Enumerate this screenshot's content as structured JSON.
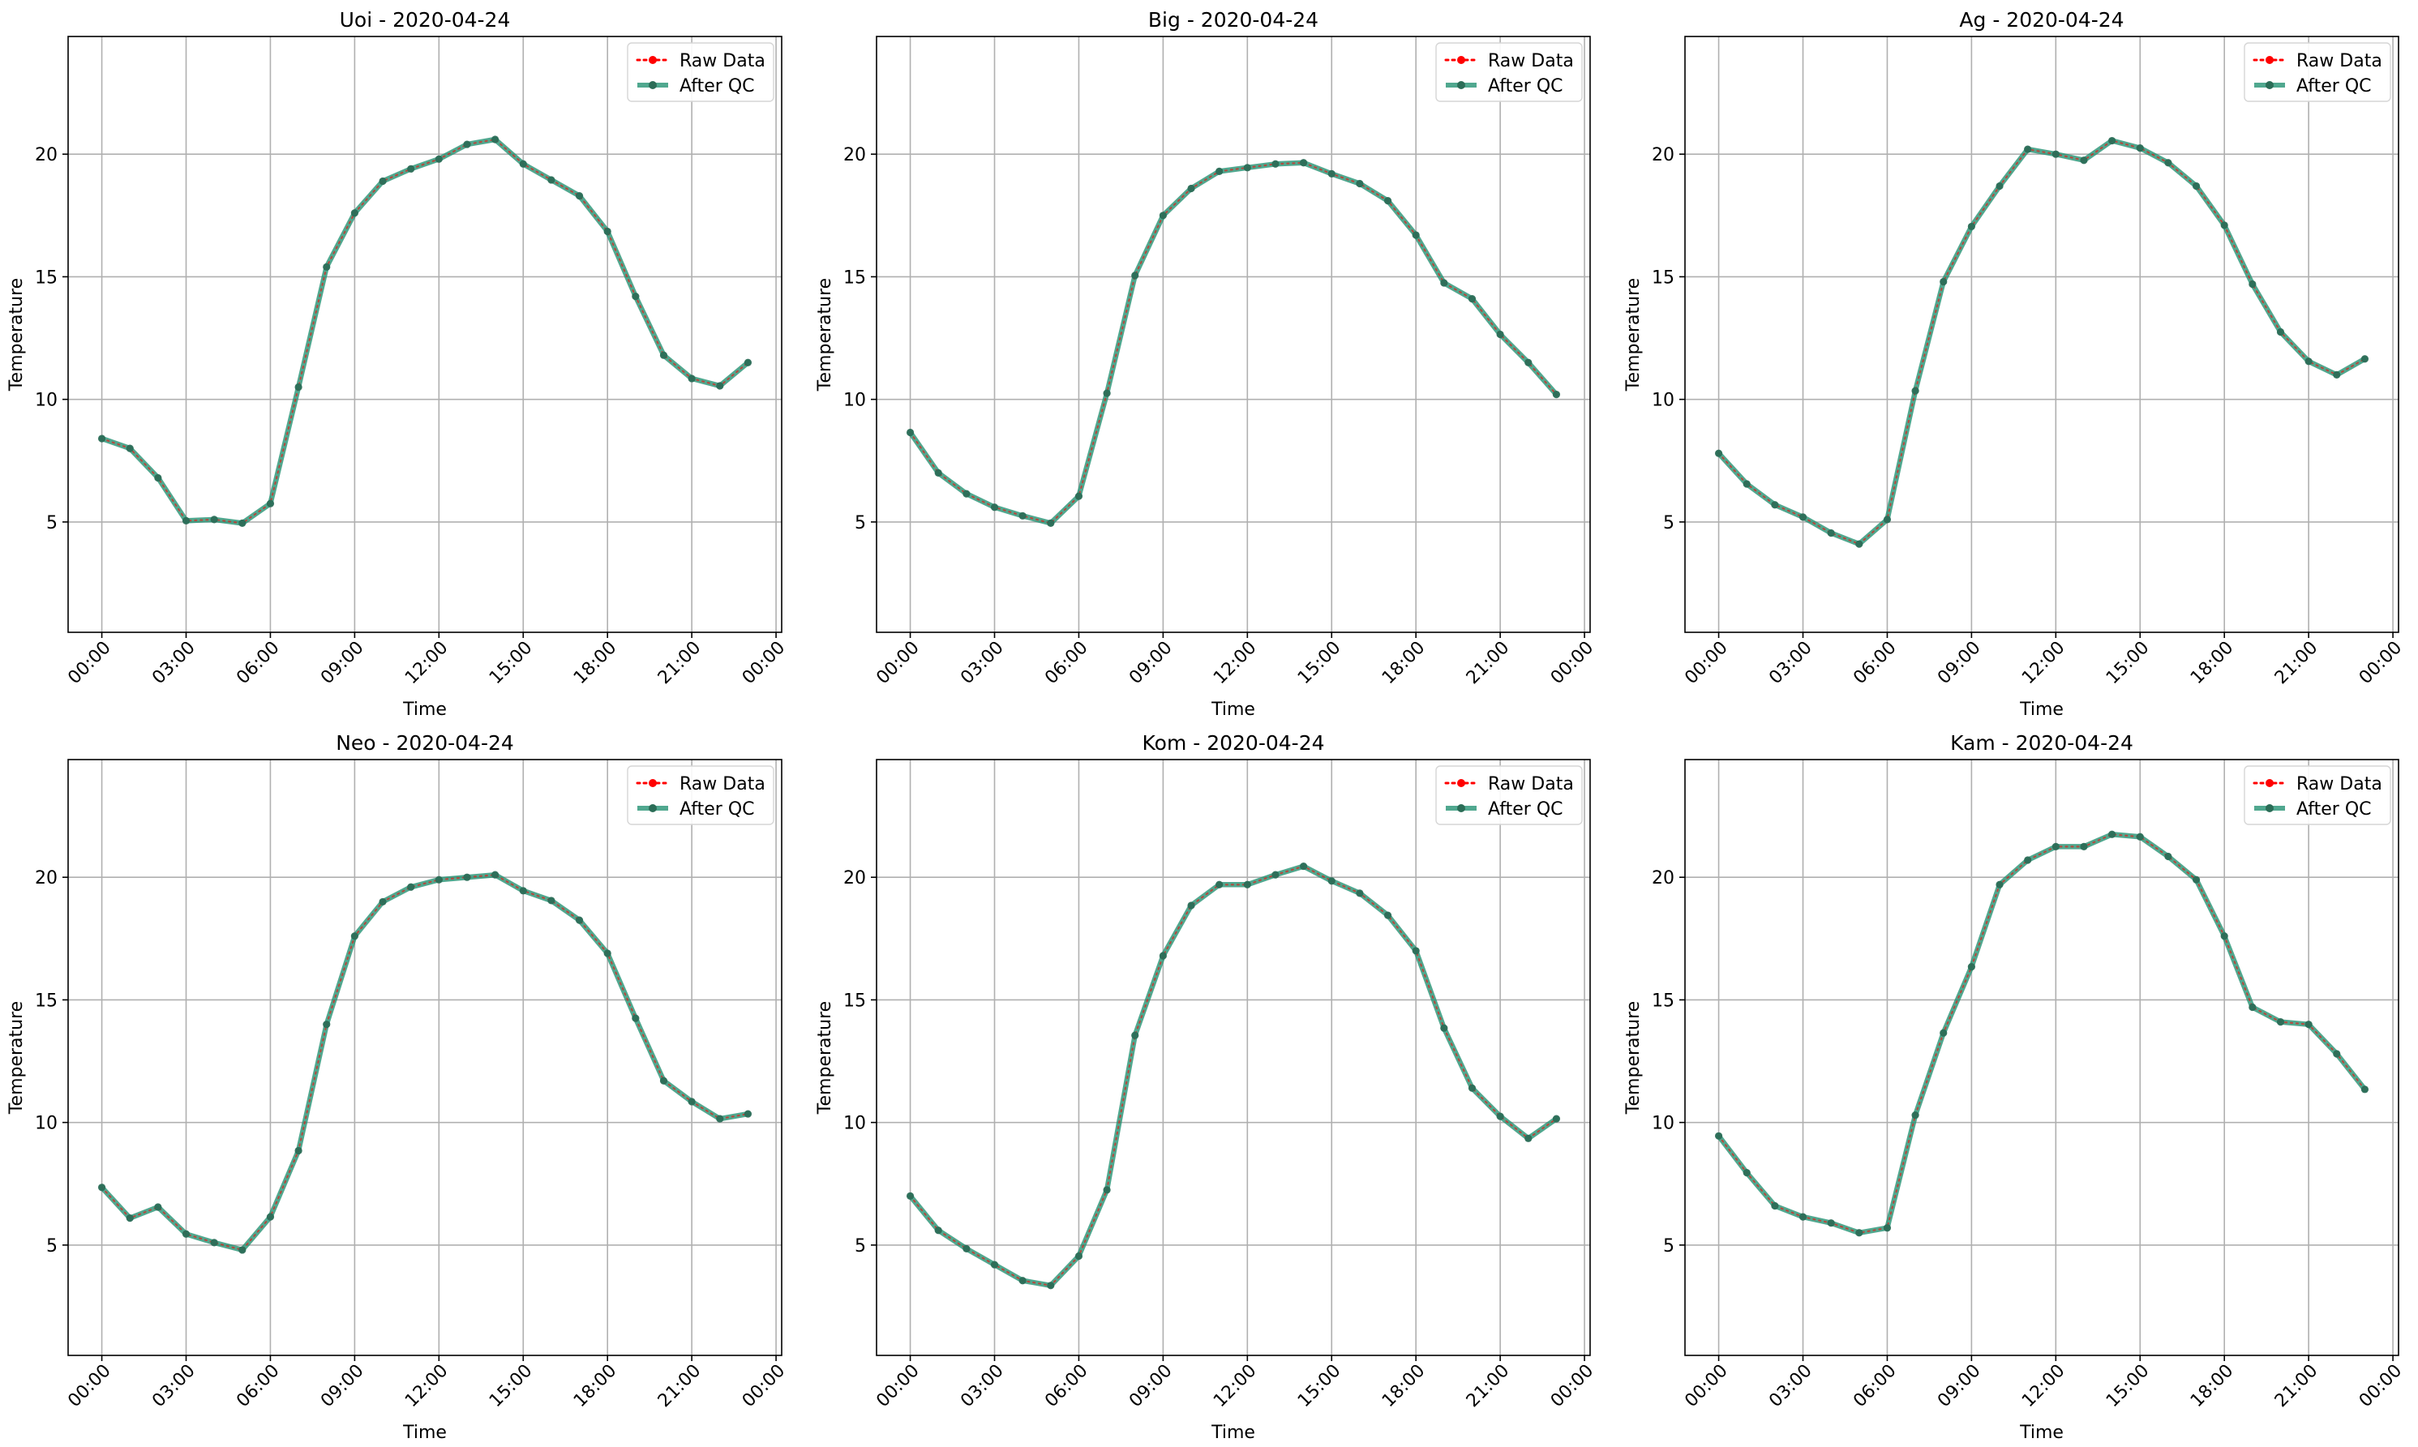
{
  "chart_data": [
    {
      "type": "line",
      "title": "Uoi - 2020-04-24",
      "xlabel": "Time",
      "ylabel": "Temperature",
      "x_ticks": [
        "00:00",
        "03:00",
        "06:00",
        "09:00",
        "12:00",
        "15:00",
        "18:00",
        "21:00",
        "00:00"
      ],
      "x_hours_range": [
        -1.2,
        24.2
      ],
      "ylim": [
        0.5,
        24.8
      ],
      "y_ticks": [
        5,
        10,
        15,
        20
      ],
      "grid": true,
      "legend_position": "top-right",
      "series": [
        {
          "name": "Raw Data",
          "color": "#ff0000",
          "style": "dotted",
          "marker": "circle",
          "values": [
            8.4,
            8.0,
            6.8,
            5.05,
            5.1,
            4.95,
            5.75,
            10.5,
            15.4,
            17.6,
            18.9,
            19.4,
            19.8,
            20.4,
            20.6,
            19.6,
            18.95,
            18.3,
            16.85,
            14.2,
            11.8,
            10.85,
            10.55,
            11.5
          ]
        },
        {
          "name": "After QC",
          "color": "#1f9070",
          "style": "solid",
          "marker": "circle",
          "values": [
            8.4,
            8.0,
            6.8,
            5.05,
            5.1,
            4.95,
            5.75,
            10.5,
            15.4,
            17.6,
            18.9,
            19.4,
            19.8,
            20.4,
            20.6,
            19.6,
            18.95,
            18.3,
            16.85,
            14.2,
            11.8,
            10.85,
            10.55,
            11.5
          ]
        }
      ]
    },
    {
      "type": "line",
      "title": "Big - 2020-04-24",
      "xlabel": "Time",
      "ylabel": "Temperature",
      "x_ticks": [
        "00:00",
        "03:00",
        "06:00",
        "09:00",
        "12:00",
        "15:00",
        "18:00",
        "21:00",
        "00:00"
      ],
      "x_hours_range": [
        -1.2,
        24.2
      ],
      "ylim": [
        0.5,
        24.8
      ],
      "y_ticks": [
        5,
        10,
        15,
        20
      ],
      "grid": true,
      "legend_position": "top-right",
      "series": [
        {
          "name": "Raw Data",
          "color": "#ff0000",
          "style": "dotted",
          "marker": "circle",
          "values": [
            8.65,
            7.0,
            6.15,
            5.6,
            5.25,
            4.95,
            6.05,
            10.25,
            15.05,
            17.5,
            18.6,
            19.3,
            19.45,
            19.6,
            19.65,
            19.2,
            18.8,
            18.1,
            16.7,
            14.75,
            14.1,
            12.65,
            11.5,
            10.2
          ]
        },
        {
          "name": "After QC",
          "color": "#1f9070",
          "style": "solid",
          "marker": "circle",
          "values": [
            8.65,
            7.0,
            6.15,
            5.6,
            5.25,
            4.95,
            6.05,
            10.25,
            15.05,
            17.5,
            18.6,
            19.3,
            19.45,
            19.6,
            19.65,
            19.2,
            18.8,
            18.1,
            16.7,
            14.75,
            14.1,
            12.65,
            11.5,
            10.2
          ]
        }
      ]
    },
    {
      "type": "line",
      "title": "Ag - 2020-04-24",
      "xlabel": "Time",
      "ylabel": "Temperature",
      "x_ticks": [
        "00:00",
        "03:00",
        "06:00",
        "09:00",
        "12:00",
        "15:00",
        "18:00",
        "21:00",
        "00:00"
      ],
      "x_hours_range": [
        -1.2,
        24.2
      ],
      "ylim": [
        0.5,
        24.8
      ],
      "y_ticks": [
        5,
        10,
        15,
        20
      ],
      "grid": true,
      "legend_position": "top-right",
      "series": [
        {
          "name": "Raw Data",
          "color": "#ff0000",
          "style": "dotted",
          "marker": "circle",
          "values": [
            7.8,
            6.55,
            5.7,
            5.2,
            4.55,
            4.1,
            5.1,
            10.35,
            14.8,
            17.05,
            18.7,
            20.2,
            20.0,
            19.75,
            20.55,
            20.25,
            19.65,
            18.7,
            17.1,
            14.7,
            12.75,
            11.55,
            11.0,
            11.65
          ]
        },
        {
          "name": "After QC",
          "color": "#1f9070",
          "style": "solid",
          "marker": "circle",
          "values": [
            7.8,
            6.55,
            5.7,
            5.2,
            4.55,
            4.1,
            5.1,
            10.35,
            14.8,
            17.05,
            18.7,
            20.2,
            20.0,
            19.75,
            20.55,
            20.25,
            19.65,
            18.7,
            17.1,
            14.7,
            12.75,
            11.55,
            11.0,
            11.65
          ]
        }
      ]
    },
    {
      "type": "line",
      "title": "Neo - 2020-04-24",
      "xlabel": "Time",
      "ylabel": "Temperature",
      "x_ticks": [
        "00:00",
        "03:00",
        "06:00",
        "09:00",
        "12:00",
        "15:00",
        "18:00",
        "21:00",
        "00:00"
      ],
      "x_hours_range": [
        -1.2,
        24.2
      ],
      "ylim": [
        0.5,
        24.8
      ],
      "y_ticks": [
        5,
        10,
        15,
        20
      ],
      "grid": true,
      "legend_position": "top-right",
      "series": [
        {
          "name": "Raw Data",
          "color": "#ff0000",
          "style": "dotted",
          "marker": "circle",
          "values": [
            7.35,
            6.1,
            6.55,
            5.45,
            5.1,
            4.8,
            6.15,
            8.85,
            14.0,
            17.6,
            19.0,
            19.6,
            19.9,
            20.0,
            20.1,
            19.45,
            19.05,
            18.25,
            16.9,
            14.25,
            11.7,
            10.85,
            10.15,
            10.35
          ]
        },
        {
          "name": "After QC",
          "color": "#1f9070",
          "style": "solid",
          "marker": "circle",
          "values": [
            7.35,
            6.1,
            6.55,
            5.45,
            5.1,
            4.8,
            6.15,
            8.85,
            14.0,
            17.6,
            19.0,
            19.6,
            19.9,
            20.0,
            20.1,
            19.45,
            19.05,
            18.25,
            16.9,
            14.25,
            11.7,
            10.85,
            10.15,
            10.35
          ]
        }
      ]
    },
    {
      "type": "line",
      "title": "Kom - 2020-04-24",
      "xlabel": "Time",
      "ylabel": "Temperature",
      "x_ticks": [
        "00:00",
        "03:00",
        "06:00",
        "09:00",
        "12:00",
        "15:00",
        "18:00",
        "21:00",
        "00:00"
      ],
      "x_hours_range": [
        -1.2,
        24.2
      ],
      "ylim": [
        0.5,
        24.8
      ],
      "y_ticks": [
        5,
        10,
        15,
        20
      ],
      "grid": true,
      "legend_position": "top-right",
      "series": [
        {
          "name": "Raw Data",
          "color": "#ff0000",
          "style": "dotted",
          "marker": "circle",
          "values": [
            7.0,
            5.6,
            4.85,
            4.2,
            3.55,
            3.35,
            4.55,
            7.25,
            13.55,
            16.8,
            18.85,
            19.7,
            19.7,
            20.1,
            20.45,
            19.85,
            19.35,
            18.45,
            17.0,
            13.85,
            11.4,
            10.25,
            9.35,
            10.15
          ]
        },
        {
          "name": "After QC",
          "color": "#1f9070",
          "style": "solid",
          "marker": "circle",
          "values": [
            7.0,
            5.6,
            4.85,
            4.2,
            3.55,
            3.35,
            4.55,
            7.25,
            13.55,
            16.8,
            18.85,
            19.7,
            19.7,
            20.1,
            20.45,
            19.85,
            19.35,
            18.45,
            17.0,
            13.85,
            11.4,
            10.25,
            9.35,
            10.15
          ]
        }
      ]
    },
    {
      "type": "line",
      "title": "Kam - 2020-04-24",
      "xlabel": "Time",
      "ylabel": "Temperature",
      "x_ticks": [
        "00:00",
        "03:00",
        "06:00",
        "09:00",
        "12:00",
        "15:00",
        "18:00",
        "21:00",
        "00:00"
      ],
      "x_hours_range": [
        -1.2,
        24.2
      ],
      "ylim": [
        0.5,
        24.8
      ],
      "y_ticks": [
        5,
        10,
        15,
        20
      ],
      "grid": true,
      "legend_position": "top-right",
      "series": [
        {
          "name": "Raw Data",
          "color": "#ff0000",
          "style": "dotted",
          "marker": "circle",
          "values": [
            9.45,
            7.95,
            6.6,
            6.15,
            5.9,
            5.5,
            5.7,
            10.3,
            13.65,
            16.35,
            19.7,
            20.7,
            21.25,
            21.25,
            21.75,
            21.65,
            20.85,
            19.9,
            17.6,
            14.7,
            14.1,
            14.0,
            12.8,
            11.35
          ]
        },
        {
          "name": "After QC",
          "color": "#1f9070",
          "style": "solid",
          "marker": "circle",
          "values": [
            9.45,
            7.95,
            6.6,
            6.15,
            5.9,
            5.5,
            5.7,
            10.3,
            13.65,
            16.35,
            19.7,
            20.7,
            21.25,
            21.25,
            21.75,
            21.65,
            20.85,
            19.9,
            17.6,
            14.7,
            14.1,
            14.0,
            12.8,
            11.35
          ]
        }
      ]
    }
  ]
}
